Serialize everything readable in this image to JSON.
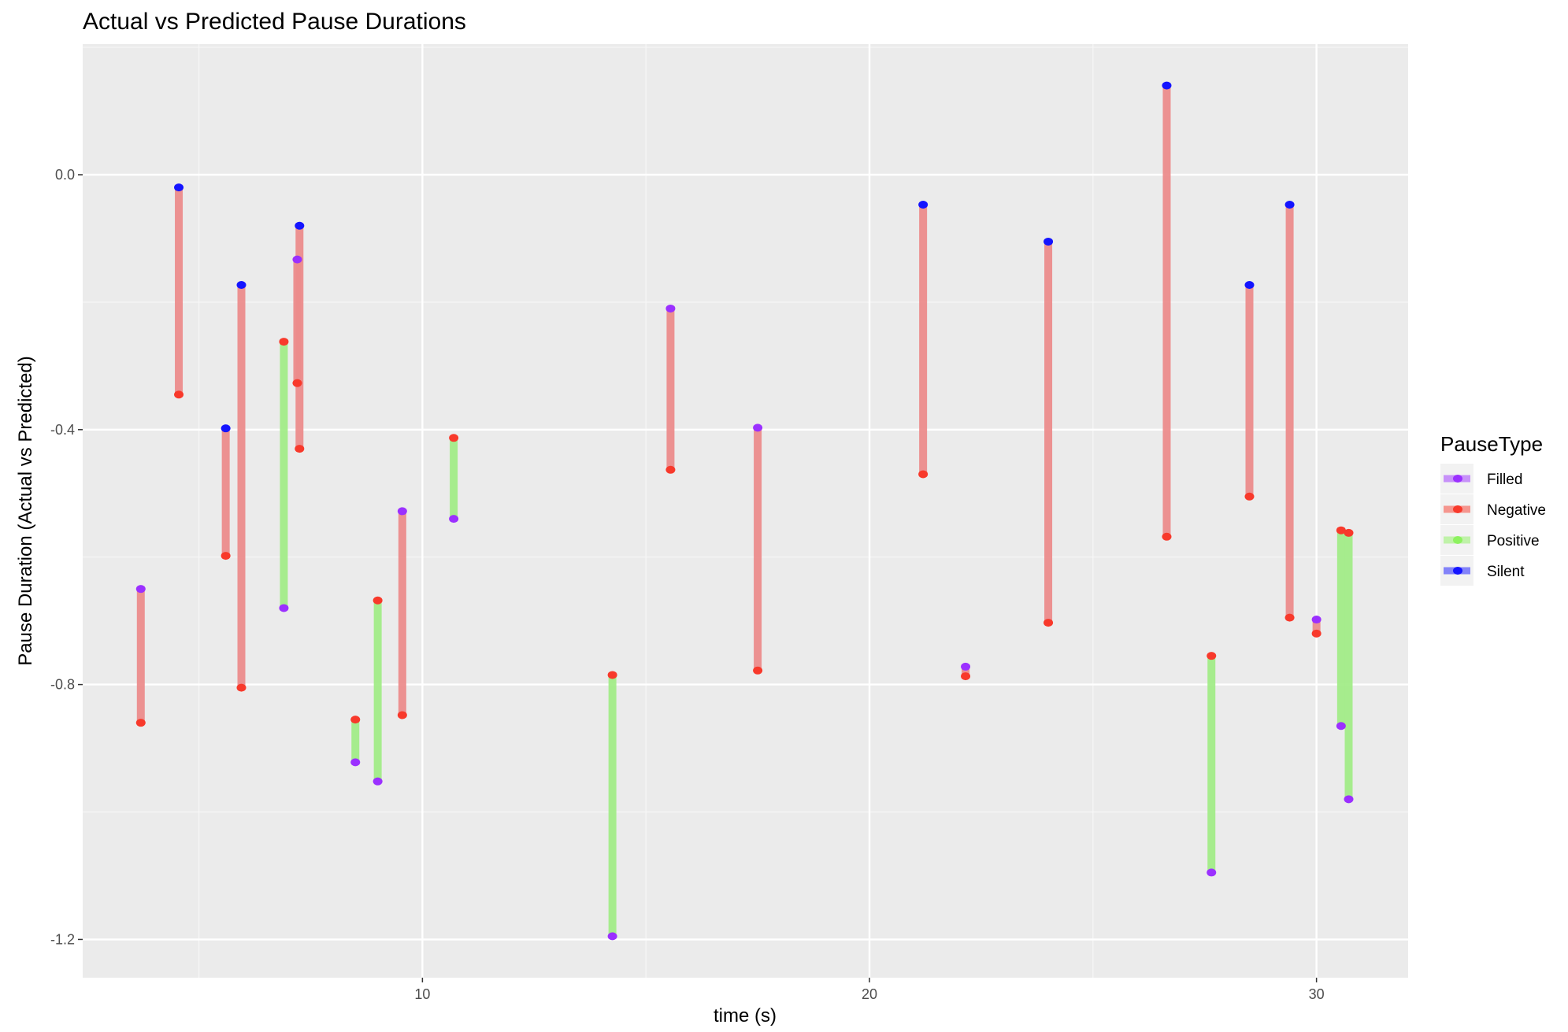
{
  "chart_data": {
    "type": "dumbbell",
    "title": "Actual vs Predicted Pause Durations",
    "xlabel": "time (s)",
    "ylabel": "Pause Duration (Actual vs Predicted)",
    "xlim": [
      2.4,
      32.05
    ],
    "ylim": [
      -1.26,
      0.205
    ],
    "x_ticks": [
      10,
      20,
      30
    ],
    "x_tick_labels": [
      "10",
      "20",
      "30"
    ],
    "x_minor_ticks": [
      5,
      15,
      25
    ],
    "y_ticks": [
      0.0,
      -0.4,
      -0.8,
      -1.2
    ],
    "y_tick_labels": [
      "0.0",
      "-0.4",
      "-0.8",
      "-1.2"
    ],
    "y_minor_ticks": [
      0.2,
      -0.2,
      -0.6,
      -1.0
    ],
    "grid": true,
    "legend_title": "PauseType",
    "legend_position": "right",
    "legend": [
      {
        "name": "Filled",
        "color": "#9b30ff"
      },
      {
        "name": "Negative",
        "color": "#f8392b"
      },
      {
        "name": "Positive",
        "color": "#8df25f"
      },
      {
        "name": "Silent",
        "color": "#1414ff"
      }
    ],
    "segment_colors": {
      "Negative": "#ec8c8c",
      "Positive": "#a2ec88"
    },
    "point_colors": {
      "Filled": "#9b30ff",
      "Negative": "#f8392b",
      "Silent": "#1414ff"
    },
    "segments": [
      {
        "x": 3.7,
        "y_from": -0.65,
        "y_to": -0.86,
        "type": "Negative",
        "from_type": "Filled",
        "to_type": "Negative"
      },
      {
        "x": 4.55,
        "y_from": -0.02,
        "y_to": -0.345,
        "type": "Negative",
        "from_type": "Silent",
        "to_type": "Negative"
      },
      {
        "x": 5.6,
        "y_from": -0.398,
        "y_to": -0.598,
        "type": "Negative",
        "from_type": "Silent",
        "to_type": "Negative"
      },
      {
        "x": 5.95,
        "y_from": -0.173,
        "y_to": -0.805,
        "type": "Negative",
        "from_type": "Silent",
        "to_type": "Negative"
      },
      {
        "x": 6.9,
        "y_from": -0.262,
        "y_to": -0.68,
        "type": "Positive",
        "from_type": "Negative",
        "to_type": "Filled"
      },
      {
        "x": 7.25,
        "y_from": -0.08,
        "y_to": -0.43,
        "type": "Negative",
        "from_type": "Silent",
        "to_type": "Negative"
      },
      {
        "x": 7.2,
        "y_from": -0.133,
        "y_to": -0.327,
        "type": "Negative",
        "from_type": "Filled",
        "to_type": "Negative"
      },
      {
        "x": 8.5,
        "y_from": -0.855,
        "y_to": -0.922,
        "type": "Positive",
        "from_type": "Negative",
        "to_type": "Filled"
      },
      {
        "x": 9.0,
        "y_from": -0.668,
        "y_to": -0.952,
        "type": "Positive",
        "from_type": "Negative",
        "to_type": "Filled"
      },
      {
        "x": 9.55,
        "y_from": -0.528,
        "y_to": -0.848,
        "type": "Negative",
        "from_type": "Filled",
        "to_type": "Negative"
      },
      {
        "x": 10.7,
        "y_from": -0.413,
        "y_to": -0.54,
        "type": "Positive",
        "from_type": "Negative",
        "to_type": "Filled"
      },
      {
        "x": 14.25,
        "y_from": -0.785,
        "y_to": -1.195,
        "type": "Positive",
        "from_type": "Negative",
        "to_type": "Filled"
      },
      {
        "x": 15.55,
        "y_from": -0.21,
        "y_to": -0.463,
        "type": "Negative",
        "from_type": "Filled",
        "to_type": "Negative"
      },
      {
        "x": 17.5,
        "y_from": -0.397,
        "y_to": -0.778,
        "type": "Negative",
        "from_type": "Filled",
        "to_type": "Negative"
      },
      {
        "x": 21.2,
        "y_from": -0.047,
        "y_to": -0.47,
        "type": "Negative",
        "from_type": "Silent",
        "to_type": "Negative"
      },
      {
        "x": 22.15,
        "y_from": -0.772,
        "y_to": -0.787,
        "type": "Negative",
        "from_type": "Filled",
        "to_type": "Negative"
      },
      {
        "x": 24.0,
        "y_from": -0.105,
        "y_to": -0.703,
        "type": "Negative",
        "from_type": "Silent",
        "to_type": "Negative"
      },
      {
        "x": 26.65,
        "y_from": 0.14,
        "y_to": -0.568,
        "type": "Negative",
        "from_type": "Silent",
        "to_type": "Negative"
      },
      {
        "x": 27.65,
        "y_from": -0.755,
        "y_to": -1.095,
        "type": "Positive",
        "from_type": "Negative",
        "to_type": "Filled"
      },
      {
        "x": 28.5,
        "y_from": -0.173,
        "y_to": -0.505,
        "type": "Negative",
        "from_type": "Silent",
        "to_type": "Negative"
      },
      {
        "x": 29.4,
        "y_from": -0.047,
        "y_to": -0.695,
        "type": "Negative",
        "from_type": "Silent",
        "to_type": "Negative"
      },
      {
        "x": 30.0,
        "y_from": -0.698,
        "y_to": -0.72,
        "type": "Negative",
        "from_type": "Filled",
        "to_type": "Negative"
      },
      {
        "x": 30.55,
        "y_from": -0.558,
        "y_to": -0.865,
        "type": "Positive",
        "from_type": "Negative",
        "to_type": "Filled"
      },
      {
        "x": 30.72,
        "y_from": -0.562,
        "y_to": -0.98,
        "type": "Positive",
        "from_type": "Negative",
        "to_type": "Filled"
      }
    ]
  }
}
